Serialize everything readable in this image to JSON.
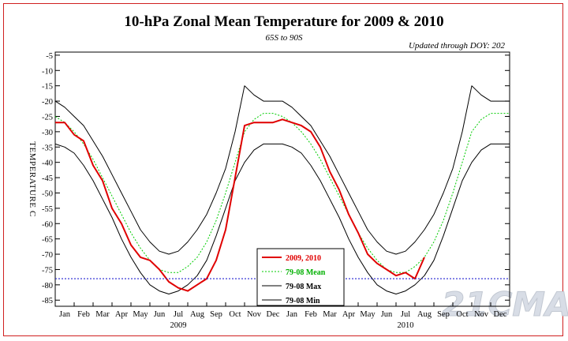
{
  "chart_data": {
    "type": "line",
    "title": "10-hPa Zonal Mean Temperature for 2009 & 2010",
    "subtitle": "65S to 90S",
    "updated": "Updated through DOY: 202",
    "ylabel": "TEMPERATURE C",
    "ylim": [
      -87,
      -4
    ],
    "yticks": [
      -5,
      -10,
      -15,
      -20,
      -25,
      -30,
      -35,
      -40,
      -45,
      -50,
      -55,
      -60,
      -65,
      -70,
      -75,
      -80,
      -85
    ],
    "xlim": [
      0,
      24
    ],
    "month_labels": [
      "Jan",
      "Feb",
      "Mar",
      "Apr",
      "May",
      "Jun",
      "Jul",
      "Aug",
      "Sep",
      "Oct",
      "Nov",
      "Dec",
      "Jan",
      "Feb",
      "Mar",
      "Apr",
      "May",
      "Jun",
      "Jul",
      "Aug",
      "Sep",
      "Oct",
      "Nov",
      "Dec"
    ],
    "year_labels": [
      {
        "label": "2009",
        "month": 6.5
      },
      {
        "label": "2010",
        "month": 18.5
      }
    ],
    "reference_line": {
      "value": -78,
      "color": "#2020d0"
    },
    "legend": [
      {
        "label": "2009, 2010",
        "color": "#e00000"
      },
      {
        "label": "79-08 Mean",
        "color": "#00b000"
      },
      {
        "label": "79-08 Max",
        "color": "#000000"
      },
      {
        "label": "79-08 Min",
        "color": "#000000"
      }
    ],
    "watermark": "21CMA",
    "series": [
      {
        "name": "79-08 Max",
        "color": "#000000",
        "x": [
          0,
          0.5,
          1,
          1.5,
          2,
          2.5,
          3,
          3.5,
          4,
          4.5,
          5,
          5.5,
          6,
          6.5,
          7,
          7.5,
          8,
          8.5,
          9,
          9.5,
          10,
          10.5,
          11,
          11.5,
          12,
          12.5,
          13,
          13.5,
          14,
          14.5,
          15,
          15.5,
          16,
          16.5,
          17,
          17.5,
          18,
          18.5,
          19,
          19.5,
          20,
          20.5,
          21,
          21.5,
          22,
          22.5,
          23,
          23.5,
          24
        ],
        "values": [
          -20,
          -22,
          -25,
          -28,
          -33,
          -38,
          -44,
          -50,
          -56,
          -62,
          -66,
          -69,
          -70,
          -69,
          -66,
          -62,
          -57,
          -50,
          -42,
          -30,
          -15,
          -18,
          -20,
          -20,
          -20,
          -22,
          -25,
          -28,
          -33,
          -38,
          -44,
          -50,
          -56,
          -62,
          -66,
          -69,
          -70,
          -69,
          -66,
          -62,
          -57,
          -50,
          -42,
          -30,
          -15,
          -18,
          -20,
          -20,
          -20
        ]
      },
      {
        "name": "79-08 Mean",
        "color": "#00cc00",
        "x": [
          0,
          0.5,
          1,
          1.5,
          2,
          2.5,
          3,
          3.5,
          4,
          4.5,
          5,
          5.5,
          6,
          6.5,
          7,
          7.5,
          8,
          8.5,
          9,
          9.5,
          10,
          10.5,
          11,
          11.5,
          12,
          12.5,
          13,
          13.5,
          14,
          14.5,
          15,
          15.5,
          16,
          16.5,
          17,
          17.5,
          18,
          18.5,
          19,
          19.5,
          20,
          20.5,
          21,
          21.5,
          22,
          22.5,
          23,
          23.5,
          24
        ],
        "values": [
          -25,
          -27,
          -30,
          -34,
          -39,
          -45,
          -51,
          -57,
          -63,
          -68,
          -72,
          -75,
          -76,
          -76,
          -74,
          -71,
          -66,
          -59,
          -50,
          -40,
          -30,
          -26,
          -24,
          -24,
          -25,
          -27,
          -30,
          -34,
          -39,
          -45,
          -51,
          -57,
          -63,
          -68,
          -72,
          -75,
          -76,
          -76,
          -74,
          -71,
          -66,
          -59,
          -50,
          -40,
          -30,
          -26,
          -24,
          -24,
          -24
        ]
      },
      {
        "name": "79-08 Min",
        "color": "#000000",
        "x": [
          0,
          0.5,
          1,
          1.5,
          2,
          2.5,
          3,
          3.5,
          4,
          4.5,
          5,
          5.5,
          6,
          6.5,
          7,
          7.5,
          8,
          8.5,
          9,
          9.5,
          10,
          10.5,
          11,
          11.5,
          12,
          12.5,
          13,
          13.5,
          14,
          14.5,
          15,
          15.5,
          16,
          16.5,
          17,
          17.5,
          18,
          18.5,
          19,
          19.5,
          20,
          20.5,
          21,
          21.5,
          22,
          22.5,
          23,
          23.5,
          24
        ],
        "values": [
          -34,
          -35,
          -37,
          -41,
          -46,
          -52,
          -58,
          -65,
          -71,
          -76,
          -80,
          -82,
          -83,
          -82,
          -80,
          -77,
          -72,
          -64,
          -55,
          -46,
          -40,
          -36,
          -34,
          -34,
          -34,
          -35,
          -37,
          -41,
          -46,
          -52,
          -58,
          -65,
          -71,
          -76,
          -80,
          -82,
          -83,
          -82,
          -80,
          -77,
          -72,
          -64,
          -55,
          -46,
          -40,
          -36,
          -34,
          -34,
          -34
        ]
      },
      {
        "name": "2009, 2010",
        "color": "#e00000",
        "x": [
          0,
          0.5,
          1,
          1.5,
          2,
          2.5,
          3,
          3.5,
          4,
          4.5,
          5,
          5.5,
          6,
          6.5,
          7,
          7.5,
          8,
          8.5,
          9,
          9.5,
          10,
          10.5,
          11,
          11.5,
          12,
          12.5,
          13,
          13.5,
          14,
          14.5,
          15,
          15.5,
          16,
          16.5,
          17,
          17.5,
          18,
          18.5,
          19,
          19.5,
          20,
          20.5,
          21,
          21.5,
          22,
          22.5,
          23,
          23.5,
          24
        ],
        "values": [
          -27,
          -27,
          -31,
          -33,
          -41,
          -46,
          -55,
          -60,
          -67,
          -71,
          -72,
          -75,
          -79,
          -81,
          -82,
          -80,
          -78,
          -72,
          -62,
          -45,
          -28,
          -27,
          -27,
          -27,
          -26,
          -27,
          -28,
          -30,
          -35,
          -43,
          -49,
          -57,
          -63,
          -70,
          -73,
          -75,
          -77,
          -76,
          -78,
          -71,
          null,
          null,
          null,
          null,
          null,
          null,
          null,
          null,
          null
        ]
      }
    ]
  }
}
